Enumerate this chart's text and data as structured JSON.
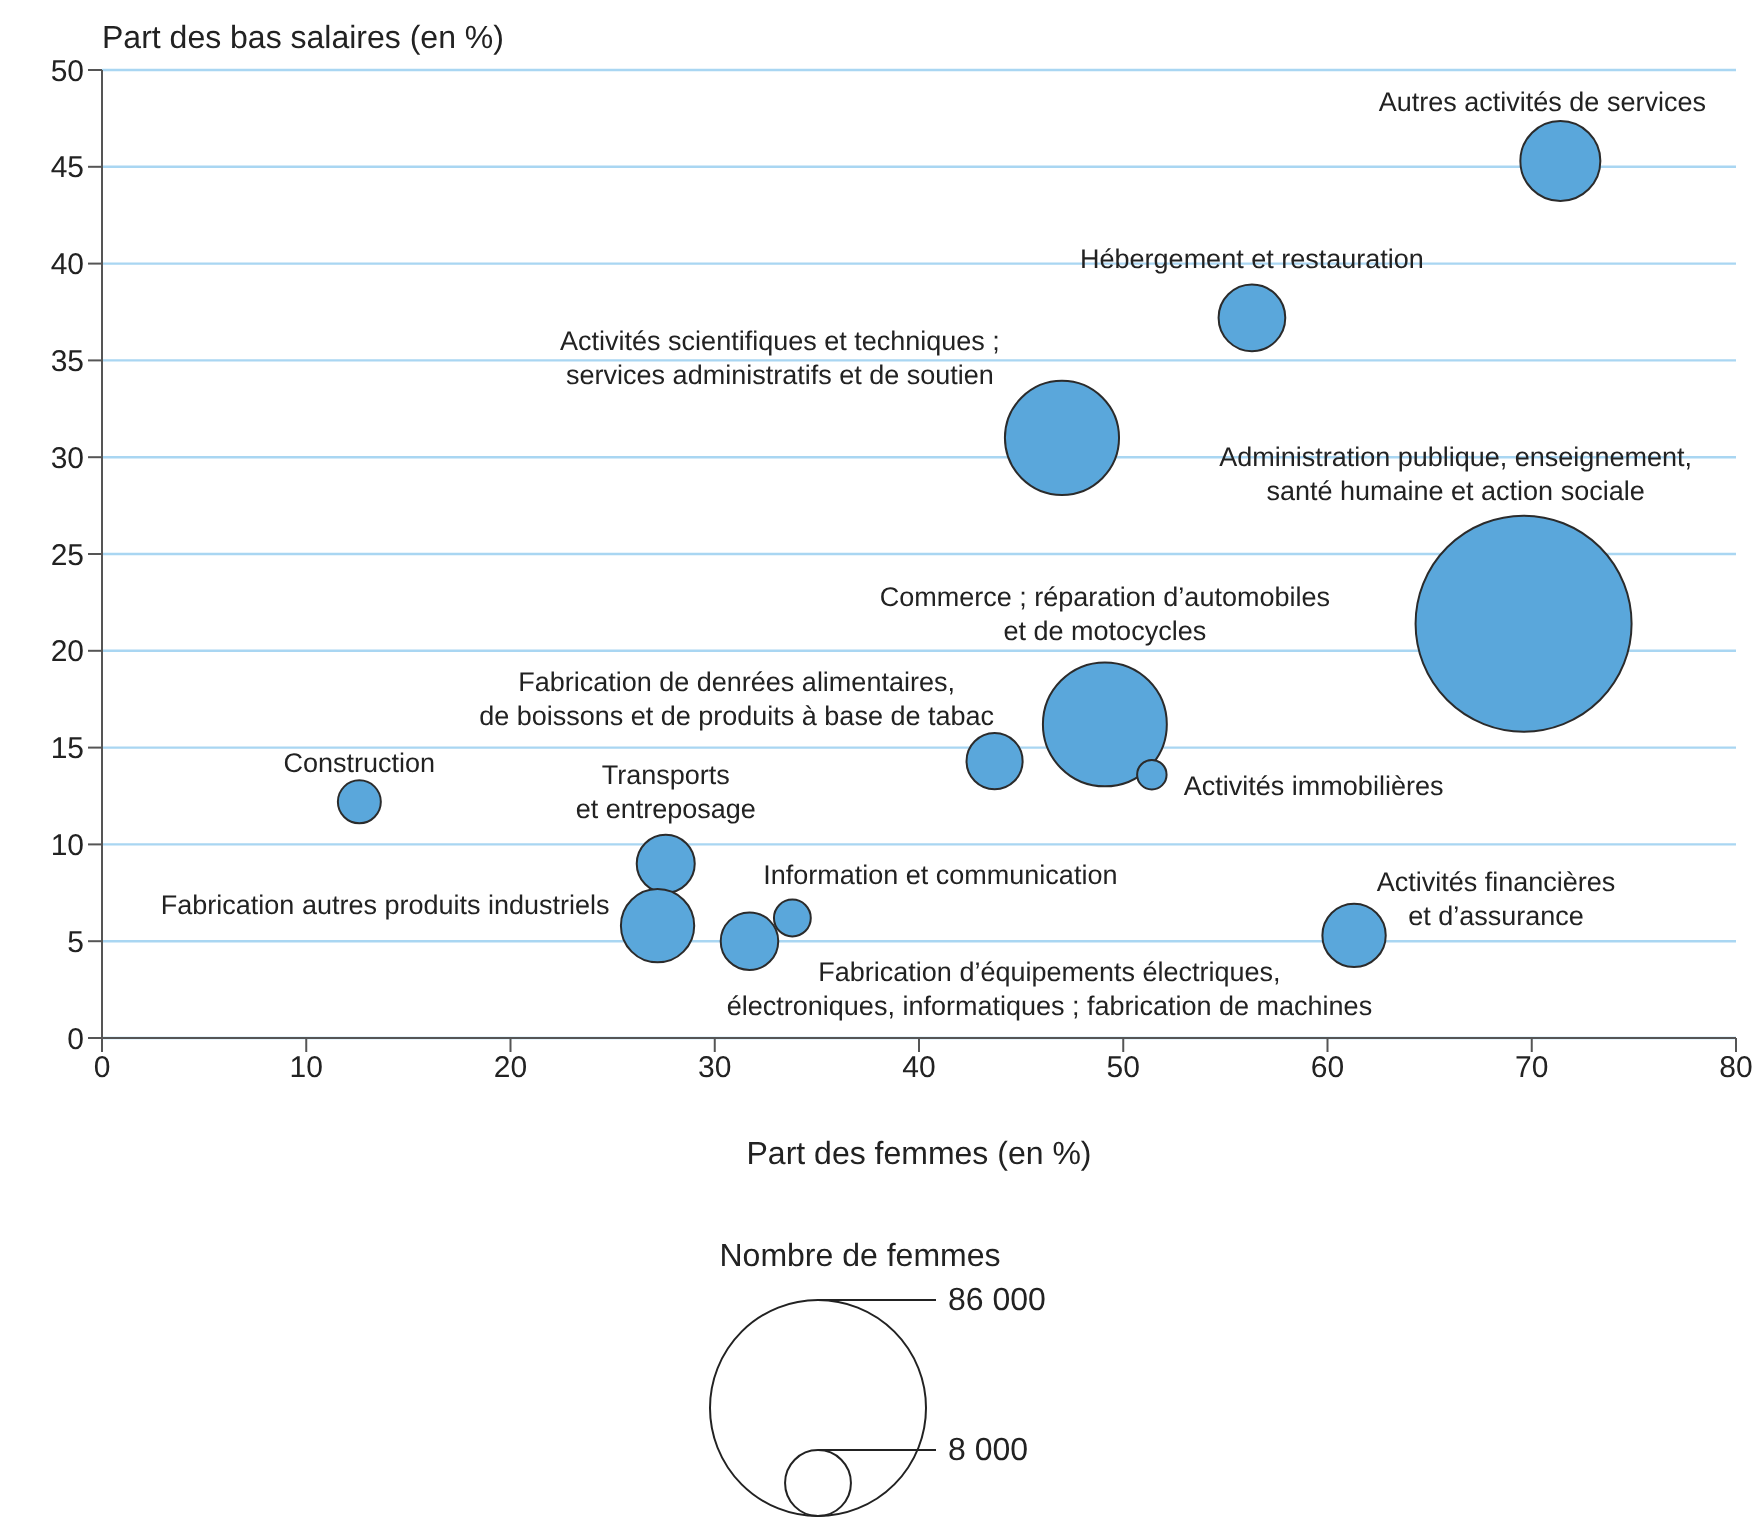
{
  "chart_data": {
    "type": "bubble",
    "xlabel": "Part des femmes (en %)",
    "ylabel": "Part des bas salaires (en %)",
    "legend_title": "Nombre de femmes",
    "series": [
      {
        "color": "#5aa7db",
        "x": [
          71.4,
          56.3,
          47.0,
          69.6,
          49.1,
          43.7,
          51.4,
          12.6,
          27.6,
          27.2,
          31.7,
          33.8,
          61.3
        ],
        "values": [
          45.3,
          37.2,
          31.0,
          21.4,
          16.2,
          14.3,
          13.6,
          12.2,
          9.0,
          5.8,
          5.0,
          6.2,
          5.3
        ],
        "sizes": [
          11800,
          8200,
          24000,
          86000,
          28300,
          5800,
          1600,
          3400,
          6200,
          9900,
          6100,
          2500,
          7400
        ]
      }
    ],
    "size_legend": [
      {
        "value": 86000,
        "label": "86 000"
      },
      {
        "value": 8000,
        "label": "8 000"
      }
    ],
    "xlim": [
      0,
      80
    ],
    "xticks": [
      0,
      10,
      20,
      30,
      40,
      50,
      60,
      70,
      80
    ],
    "ylim": [
      0,
      50
    ],
    "yticks": [
      0,
      5,
      10,
      15,
      20,
      25,
      30,
      35,
      40,
      45,
      50
    ],
    "grid": "y",
    "annotations": [
      {
        "text": "Autres activités de services",
        "x": 71.4,
        "y": 45.3
      },
      {
        "text": "Hébergement et restauration",
        "x": 56.3,
        "y": 37.2
      },
      {
        "text": "Activités scientifiques et techniques ;\nservices administratifs et de soutien",
        "x": 47.0,
        "y": 31.0
      },
      "Administration publique, enseignement,\nsanté humaine et action sociale",
      {
        "text": "Commerce ; réparation d’automobiles\net de motocycles",
        "x": 49.1,
        "y": 16.2
      },
      {
        "text": "Fabrication de denrées alimentaires,\nde boissons et de produits à base de tabac",
        "x": 43.7,
        "y": 14.3
      },
      {
        "text": "Activités immobilières",
        "x": 51.4,
        "y": 13.6
      },
      {
        "text": "Construction",
        "x": 12.6,
        "y": 12.2
      },
      {
        "text": "Transports\net entreposage",
        "x": 27.6,
        "y": 9.0
      },
      {
        "text": "Fabrication autres produits industriels",
        "x": 27.2,
        "y": 5.8
      },
      {
        "text": "Fabrication d’équipements électriques,\nélectroniques, informatiques ; fabrication de machines",
        "x": 31.7,
        "y": 5.0
      },
      {
        "text": "Information et communication",
        "x": 33.8,
        "y": 6.2
      },
      {
        "text": "Activités financières\net d’assurance",
        "x": 61.3,
        "y": 5.3
      }
    ]
  }
}
